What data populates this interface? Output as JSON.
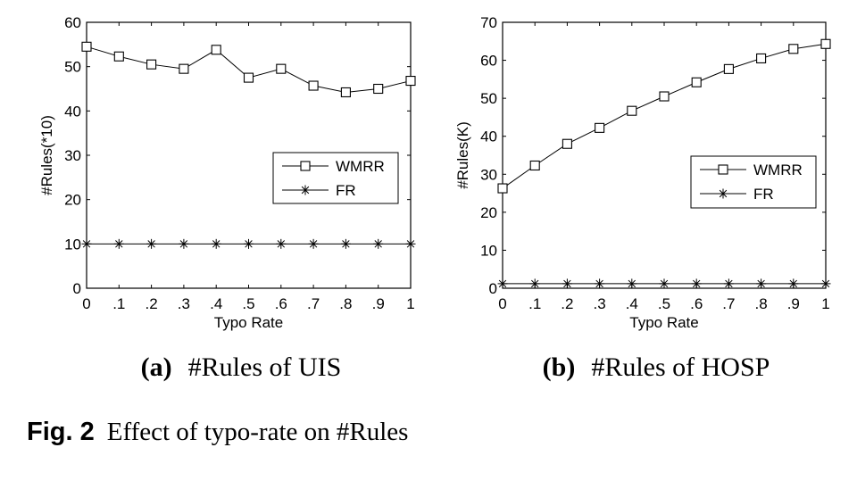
{
  "chart_data": [
    {
      "type": "line",
      "x": [
        0,
        0.1,
        0.2,
        0.3,
        0.4,
        0.5,
        0.6,
        0.7,
        0.8,
        0.9,
        1
      ],
      "xticks": [
        "0",
        ".1",
        ".2",
        ".3",
        ".4",
        ".5",
        ".6",
        ".7",
        ".8",
        ".9",
        "1"
      ],
      "xlabel": "Typo Rate",
      "ylabel": "#Rules(*10)",
      "ylim": [
        0,
        60
      ],
      "yticks": [
        0,
        10,
        20,
        30,
        40,
        50,
        60
      ],
      "xlim": [
        0,
        1
      ],
      "grid": false,
      "legend_position": "right",
      "series": [
        {
          "name": "WMRR",
          "marker": "square",
          "values": [
            54.5,
            52.3,
            50.5,
            49.5,
            53.8,
            47.5,
            49.5,
            45.7,
            44.2,
            45.0,
            46.8
          ]
        },
        {
          "name": "FR",
          "marker": "star",
          "values": [
            10,
            10,
            10,
            10,
            10,
            10,
            10,
            10,
            10,
            10,
            10
          ]
        }
      ],
      "caption_letter": "(a)",
      "caption_text": "#Rules of UIS"
    },
    {
      "type": "line",
      "x": [
        0,
        0.1,
        0.2,
        0.3,
        0.4,
        0.5,
        0.6,
        0.7,
        0.8,
        0.9,
        1
      ],
      "xticks": [
        "0",
        ".1",
        ".2",
        ".3",
        ".4",
        ".5",
        ".6",
        ".7",
        ".8",
        ".9",
        "1"
      ],
      "xlabel": "Typo Rate",
      "ylabel": "#Rules(K)",
      "ylim": [
        0,
        70
      ],
      "yticks": [
        0,
        10,
        20,
        30,
        40,
        50,
        60,
        70
      ],
      "xlim": [
        0,
        1
      ],
      "grid": false,
      "legend_position": "right",
      "series": [
        {
          "name": "WMRR",
          "marker": "square",
          "values": [
            26.3,
            32.3,
            38.0,
            42.2,
            46.7,
            50.5,
            54.2,
            57.7,
            60.5,
            63.0,
            64.3
          ]
        },
        {
          "name": "FR",
          "marker": "star",
          "values": [
            1.2,
            1.2,
            1.2,
            1.2,
            1.2,
            1.2,
            1.2,
            1.2,
            1.2,
            1.2,
            1.2
          ]
        }
      ],
      "caption_letter": "(b)",
      "caption_text": "#Rules of HOSP"
    }
  ],
  "figure": {
    "label": "Fig. 2",
    "caption": "Effect of typo-rate on #Rules"
  }
}
